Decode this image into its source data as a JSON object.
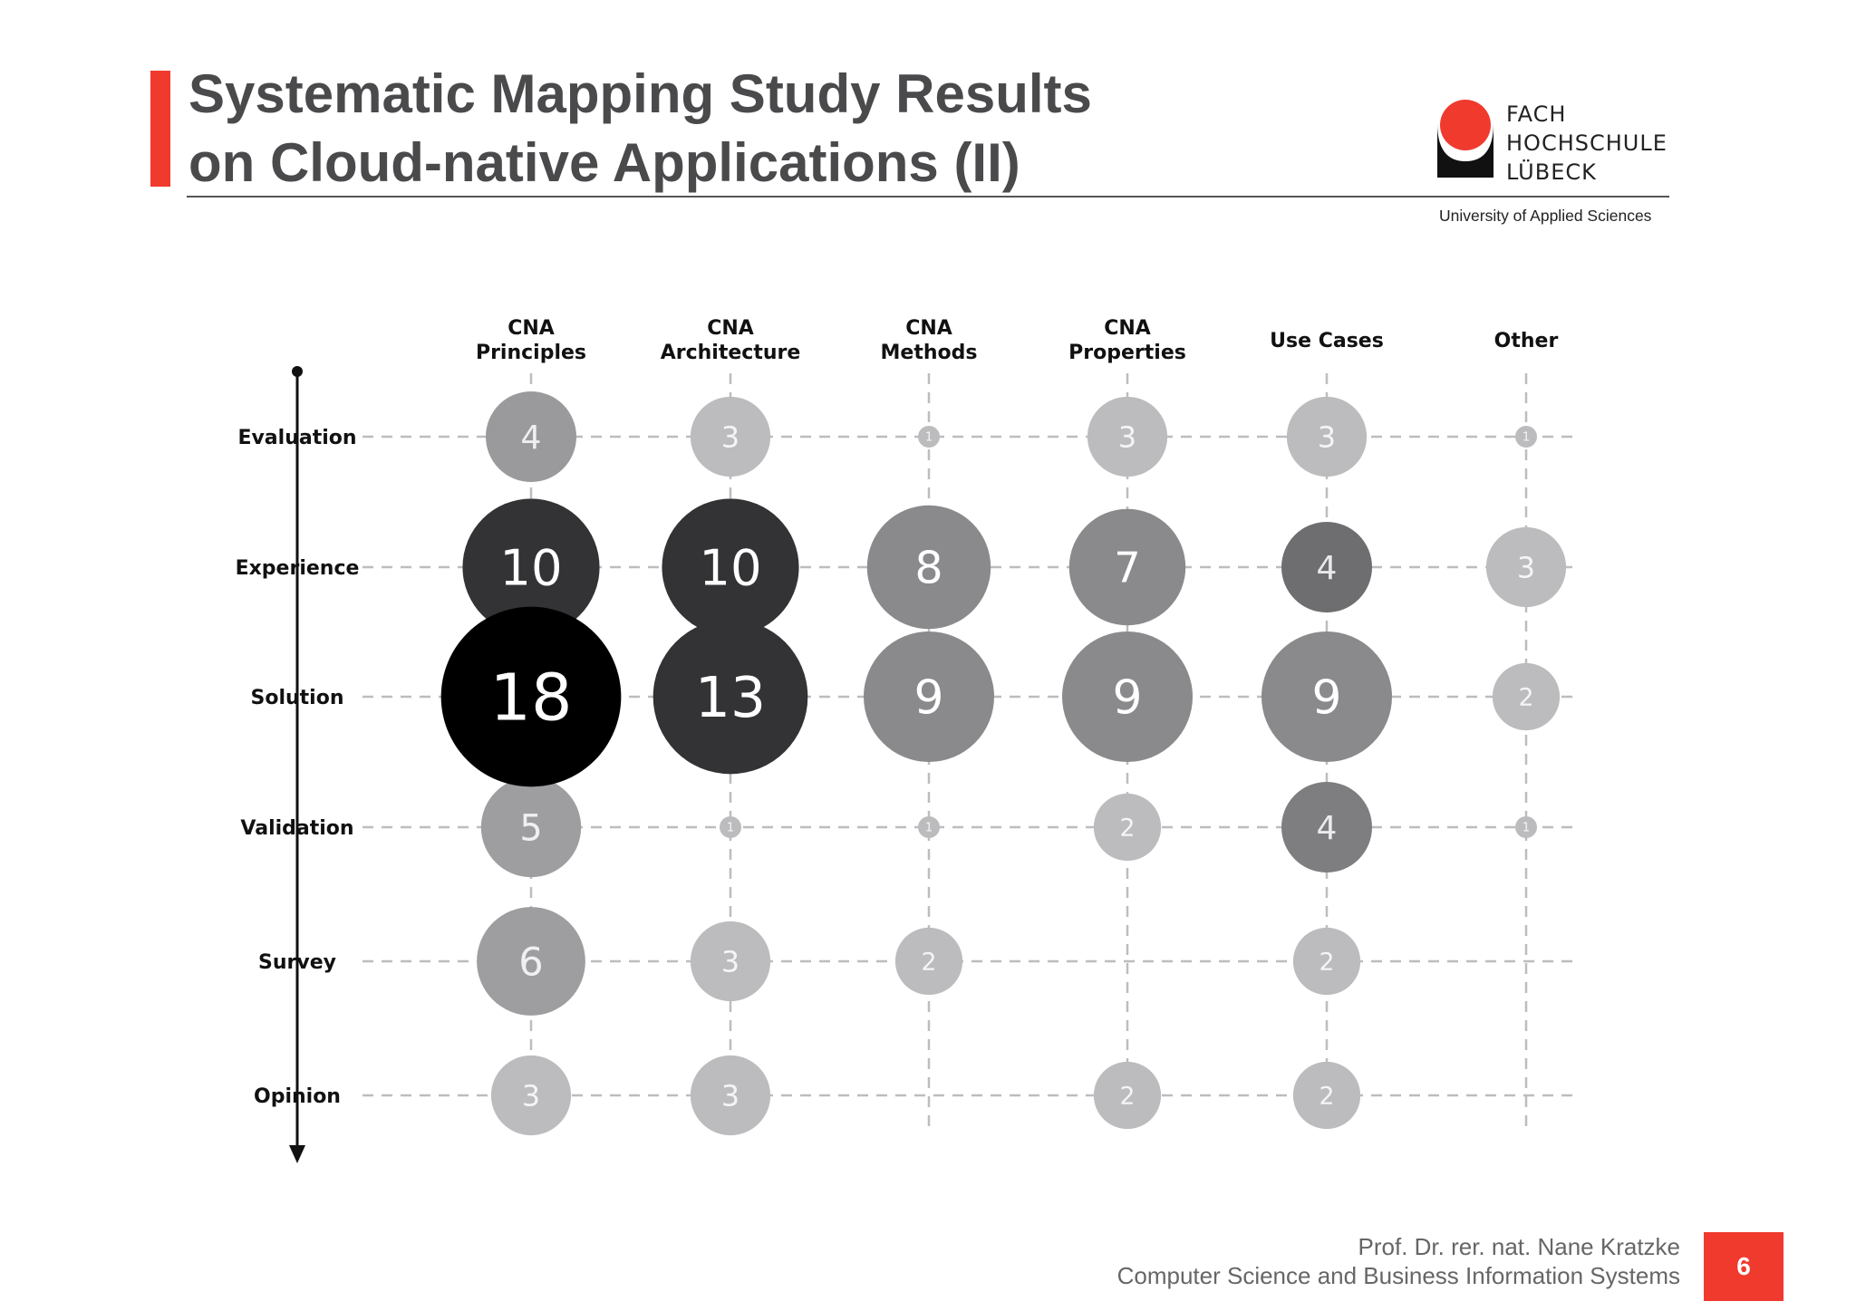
{
  "slide": {
    "title_line1": "Systematic Mapping Study Results",
    "title_line2": "on Cloud-native Applications (II)",
    "logo": {
      "line1": "FACH",
      "line2": "HOCHSCHULE",
      "line3": "LÜBECK",
      "subtitle": "University of Applied Sciences",
      "color": "#f03a2e"
    },
    "footer": {
      "author": "Prof. Dr. rer. nat. Nane Kratzke",
      "department": "Computer Science and Business Information Systems",
      "page_number": "6"
    },
    "accent_color": "#f03a2e"
  },
  "chart_data": {
    "type": "bubble",
    "title": "",
    "columns": [
      {
        "line1": "CNA",
        "line2": "Principles"
      },
      {
        "line1": "CNA",
        "line2": "Architecture"
      },
      {
        "line1": "CNA",
        "line2": "Methods"
      },
      {
        "line1": "CNA",
        "line2": "Properties"
      },
      {
        "line1": "",
        "line2": "Use Cases"
      },
      {
        "line1": "",
        "line2": "Other"
      }
    ],
    "rows": [
      "Evaluation",
      "Experience",
      "Solution",
      "Validation",
      "Survey",
      "Opinion"
    ],
    "values": [
      [
        4,
        3,
        1,
        3,
        3,
        1
      ],
      [
        10,
        10,
        8,
        7,
        4,
        3
      ],
      [
        18,
        13,
        9,
        9,
        9,
        2
      ],
      [
        5,
        1,
        1,
        2,
        4,
        1
      ],
      [
        6,
        3,
        2,
        null,
        2,
        null
      ],
      [
        3,
        3,
        null,
        2,
        2,
        null
      ]
    ],
    "grid": "dashed",
    "row_axis_arrow": "down",
    "colors": {
      "low": "#bcbcbe",
      "mid": "#8a898b",
      "high": "#333234",
      "max": "#000000"
    }
  }
}
